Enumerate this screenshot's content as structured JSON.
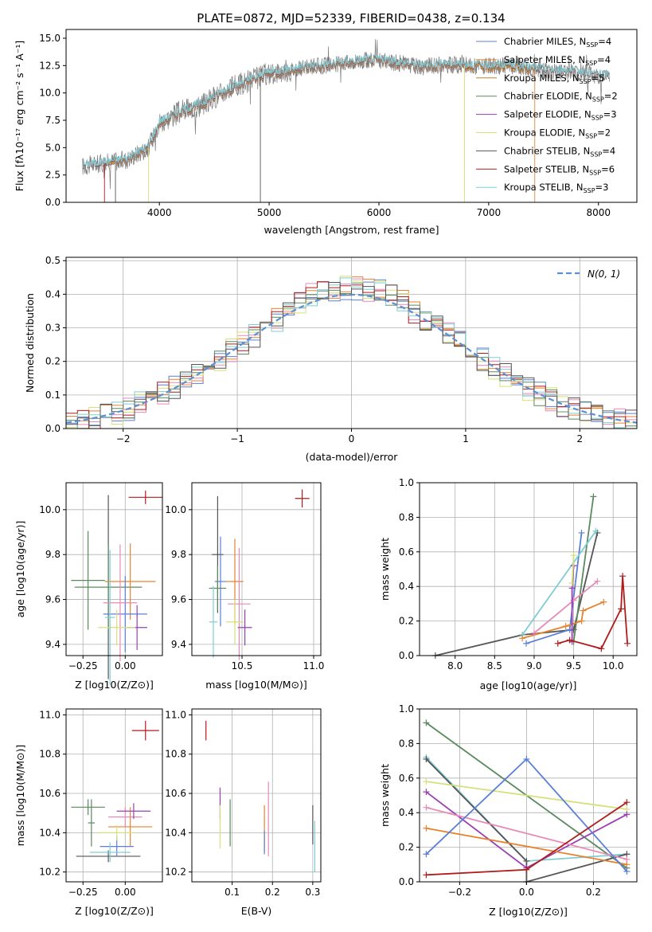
{
  "figure_title": "PLATE=0872, MJD=52339, FIBERID=0438, z=0.134",
  "colors": {
    "chabrier_miles": "#5b7fd6",
    "salpeter_miles": "#e6832e",
    "kroupa_miles": "#b8862b",
    "chabrier_elodie": "#5a8a5e",
    "salpeter_elodie": "#9a3fb3",
    "kroupa_elodie": "#d6e07a",
    "chabrier_stelib": "#555555",
    "salpeter_stelib": "#b01c1c",
    "kroupa_stelib": "#7fcdd4",
    "pink": "#e88ab7",
    "lime": "#cbe85a",
    "gaussian": "#5b8fd6"
  },
  "chart_data": [
    {
      "id": "spectrum",
      "type": "line",
      "title": "PLATE=0872, MJD=52339, FIBERID=0438, z=0.134",
      "xlabel": "wavelength [Angstrom, rest frame]",
      "ylabel": "Flux [f_λ 10^-17 erg cm^-2 s^-1 A^-1]",
      "xlim": [
        3150,
        8350
      ],
      "ylim": [
        0,
        15.8
      ],
      "xticks": [
        "4000",
        "5000",
        "6000",
        "7000",
        "8000"
      ],
      "yticks": [
        "0.0",
        "2.5",
        "5.0",
        "7.5",
        "10.0",
        "12.5",
        "15.0"
      ],
      "legend_position": "top-right",
      "legend": [
        "Chabrier MILES, N_SSP=4",
        "Salpeter MILES, N_SSP=4",
        "Kroupa MILES, N_SSP=5",
        "Chabrier ELODIE, N_SSP=2",
        "Salpeter ELODIE, N_SSP=3",
        "Kroupa ELODIE, N_SSP=2",
        "Chabrier STELIB, N_SSP=4",
        "Salpeter STELIB, N_SSP=6",
        "Kroupa STELIB, N_SSP=3"
      ],
      "continuum_x": [
        3300,
        3500,
        3700,
        3900,
        4000,
        4200,
        4400,
        4600,
        4800,
        5000,
        5200,
        5400,
        5600,
        5800,
        6000,
        6200,
        6400,
        6600,
        6800,
        7000,
        7200,
        7400,
        7600,
        7800,
        8000,
        8100
      ],
      "continuum_y": [
        3.3,
        3.6,
        3.9,
        5.0,
        7.3,
        8.3,
        9.0,
        10.2,
        11.0,
        11.8,
        12.1,
        12.4,
        12.6,
        12.9,
        13.0,
        12.7,
        12.4,
        12.6,
        12.5,
        12.4,
        12.5,
        12.2,
        12.0,
        11.9,
        11.6,
        11.5
      ]
    },
    {
      "id": "residuals",
      "type": "histogram",
      "xlabel": "(data-model)/error",
      "ylabel": "Normed distribution",
      "xlim": [
        -2.5,
        2.5
      ],
      "ylim": [
        0,
        0.51
      ],
      "xticks": [
        "−2",
        "−1",
        "0",
        "1",
        "2"
      ],
      "yticks": [
        "0.0",
        "0.1",
        "0.2",
        "0.3",
        "0.4",
        "0.5"
      ],
      "legend": [
        "N(0, 1)"
      ],
      "legend_position": "top-right"
    },
    {
      "id": "age-metallicity",
      "type": "errorbar",
      "xlabel": "Z [log10(Z/Z⊙)]",
      "ylabel": "age [log10(age/yr)]",
      "xlim": [
        -0.35,
        0.22
      ],
      "ylim": [
        9.35,
        10.12
      ],
      "xticks": [
        "−0.25",
        "0.00"
      ],
      "yticks": [
        "9.4",
        "9.6",
        "9.8",
        "10.0"
      ],
      "points": [
        {
          "x": -0.1,
          "y": 9.655,
          "xerr": 0.19,
          "yerr": 0.41,
          "series": "chabrier_stelib"
        },
        {
          "x": -0.1,
          "y": 9.655,
          "xerr": 0.2,
          "yerr": 0.19,
          "series": "chabrier_elodie"
        },
        {
          "x": -0.22,
          "y": 9.685,
          "xerr": 0.1,
          "yerr": 0.22,
          "series": "chabrier_elodie"
        },
        {
          "x": 0.03,
          "y": 9.68,
          "xerr": 0.15,
          "yerr": 0.17,
          "series": "salpeter_miles"
        },
        {
          "x": 0.0,
          "y": 9.535,
          "xerr": 0.13,
          "yerr": 0.17,
          "series": "chabrier_miles"
        },
        {
          "x": -0.03,
          "y": 9.585,
          "xerr": 0.1,
          "yerr": 0.26,
          "series": "pink"
        },
        {
          "x": 0.07,
          "y": 9.475,
          "xerr": 0.06,
          "yerr": 0.1,
          "series": "salpeter_elodie"
        },
        {
          "x": -0.05,
          "y": 9.475,
          "xerr": 0.11,
          "yerr": 0.08,
          "series": "kroupa_elodie"
        },
        {
          "x": -0.09,
          "y": 9.52,
          "xerr": 0.03,
          "yerr": 0.3,
          "series": "kroupa_stelib"
        },
        {
          "x": 0.12,
          "y": 10.055,
          "xerr": 0.1,
          "yerr": 0.03,
          "series": "salpeter_stelib"
        }
      ]
    },
    {
      "id": "age-mass",
      "type": "errorbar",
      "xlabel": "mass [log10(M/M⊙)]",
      "ylabel": "",
      "xlim": [
        10.15,
        11.05
      ],
      "ylim": [
        9.35,
        10.12
      ],
      "xticks": [
        "10.5",
        "11.0"
      ],
      "yticks": [
        "9.4",
        "9.6",
        "9.8",
        "10.0"
      ],
      "points": [
        {
          "x": 10.33,
          "y": 9.8,
          "xerr": 0.04,
          "yerr": 0.26,
          "series": "chabrier_stelib"
        },
        {
          "x": 10.35,
          "y": 9.68,
          "xerr": 0.04,
          "yerr": 0.2,
          "series": "chabrier_miles"
        },
        {
          "x": 10.45,
          "y": 9.68,
          "xerr": 0.06,
          "yerr": 0.19,
          "series": "salpeter_miles"
        },
        {
          "x": 10.48,
          "y": 9.58,
          "xerr": 0.08,
          "yerr": 0.25,
          "series": "pink"
        },
        {
          "x": 10.45,
          "y": 9.5,
          "xerr": 0.06,
          "yerr": 0.1,
          "series": "kroupa_elodie"
        },
        {
          "x": 10.52,
          "y": 9.475,
          "xerr": 0.05,
          "yerr": 0.08,
          "series": "salpeter_elodie"
        },
        {
          "x": 10.33,
          "y": 9.65,
          "xerr": 0.06,
          "yerr": 0.1,
          "series": "chabrier_elodie"
        },
        {
          "x": 10.3,
          "y": 9.5,
          "xerr": 0.03,
          "yerr": 0.16,
          "series": "kroupa_stelib"
        },
        {
          "x": 10.92,
          "y": 10.05,
          "xerr": 0.05,
          "yerr": 0.04,
          "series": "salpeter_stelib"
        }
      ]
    },
    {
      "id": "weight-age",
      "type": "line",
      "xlabel": "age [log10(age/yr)]",
      "ylabel": "mass weight",
      "xlim": [
        7.55,
        10.3
      ],
      "ylim": [
        0,
        1.0
      ],
      "xticks": [
        "8.0",
        "8.5",
        "9.0",
        "9.5",
        "10.0"
      ],
      "yticks": [
        "0.0",
        "0.2",
        "0.4",
        "0.6",
        "0.8",
        "1.0"
      ],
      "series": [
        {
          "key": "chabrier_stelib",
          "x": [
            7.75,
            8.85,
            9.5,
            9.8
          ],
          "y": [
            0.0,
            0.12,
            0.15,
            0.71
          ]
        },
        {
          "key": "chabrier_elodie",
          "x": [
            9.5,
            9.75
          ],
          "y": [
            0.08,
            0.92
          ]
        },
        {
          "key": "chabrier_miles",
          "x": [
            8.9,
            9.45,
            9.6
          ],
          "y": [
            0.07,
            0.15,
            0.71
          ]
        },
        {
          "key": "kroupa_stelib",
          "x": [
            8.85,
            9.78
          ],
          "y": [
            0.12,
            0.72
          ]
        },
        {
          "key": "salpeter_miles",
          "x": [
            8.85,
            9.4,
            9.6,
            9.62,
            9.88
          ],
          "y": [
            0.1,
            0.17,
            0.2,
            0.26,
            0.31
          ]
        },
        {
          "key": "pink",
          "x": [
            9.0,
            9.5,
            9.8
          ],
          "y": [
            0.13,
            0.32,
            0.43
          ]
        },
        {
          "key": "salpeter_elodie",
          "x": [
            9.48,
            9.48,
            9.5
          ],
          "y": [
            0.08,
            0.39,
            0.52
          ]
        },
        {
          "key": "kroupa_elodie",
          "x": [
            9.48,
            9.5
          ],
          "y": [
            0.42,
            0.58
          ]
        },
        {
          "key": "salpeter_stelib",
          "x": [
            9.3,
            9.45,
            9.85,
            10.1,
            10.12,
            10.18
          ],
          "y": [
            0.07,
            0.09,
            0.04,
            0.27,
            0.46,
            0.07
          ]
        }
      ]
    },
    {
      "id": "mass-metallicity",
      "type": "errorbar",
      "xlabel": "Z [log10(Z/Z⊙)]",
      "ylabel": "mass [log10(M/M⊙)]",
      "xlim": [
        -0.35,
        0.22
      ],
      "ylim": [
        10.15,
        11.03
      ],
      "xticks": [
        "−0.25",
        "0.00"
      ],
      "yticks": [
        "10.2",
        "10.4",
        "10.6",
        "10.8",
        "11.0"
      ],
      "points": [
        {
          "x": -0.1,
          "y": 10.28,
          "xerr": 0.19,
          "yerr": 0.03,
          "series": "chabrier_stelib"
        },
        {
          "x": -0.22,
          "y": 10.53,
          "xerr": 0.1,
          "yerr": 0.04,
          "series": "chabrier_elodie"
        },
        {
          "x": -0.2,
          "y": 10.45,
          "xerr": 0.02,
          "yerr": 0.12,
          "series": "chabrier_elodie"
        },
        {
          "x": 0.03,
          "y": 10.43,
          "xerr": 0.13,
          "yerr": 0.1,
          "series": "salpeter_miles"
        },
        {
          "x": -0.05,
          "y": 10.33,
          "xerr": 0.1,
          "yerr": 0.05,
          "series": "chabrier_miles"
        },
        {
          "x": 0.0,
          "y": 10.48,
          "xerr": 0.1,
          "yerr": 0.05,
          "series": "pink"
        },
        {
          "x": 0.05,
          "y": 10.51,
          "xerr": 0.1,
          "yerr": 0.04,
          "series": "salpeter_elodie"
        },
        {
          "x": -0.05,
          "y": 10.4,
          "xerr": 0.11,
          "yerr": 0.04,
          "series": "kroupa_elodie"
        },
        {
          "x": -0.09,
          "y": 10.3,
          "xerr": 0.12,
          "yerr": 0.05,
          "series": "kroupa_stelib"
        },
        {
          "x": 0.12,
          "y": 10.92,
          "xerr": 0.08,
          "yerr": 0.05,
          "series": "salpeter_stelib"
        }
      ]
    },
    {
      "id": "mass-extinction",
      "type": "errorbar",
      "xlabel": "E(B-V)",
      "ylabel": "",
      "xlim": [
        0.0,
        0.32
      ],
      "ylim": [
        10.15,
        11.03
      ],
      "xticks": [
        "0.1",
        "0.2",
        "0.3"
      ],
      "yticks": [
        "10.2",
        "10.4",
        "10.6",
        "10.8",
        "11.0"
      ],
      "points": [
        {
          "x": 0.035,
          "y": 10.92,
          "yerr": 0.05,
          "series": "salpeter_stelib"
        },
        {
          "x": 0.07,
          "y": 10.55,
          "yerr": 0.08,
          "series": "salpeter_elodie"
        },
        {
          "x": 0.07,
          "y": 10.43,
          "yerr": 0.11,
          "series": "kroupa_elodie"
        },
        {
          "x": 0.095,
          "y": 10.45,
          "yerr": 0.12,
          "series": "chabrier_elodie"
        },
        {
          "x": 0.18,
          "y": 10.42,
          "yerr": 0.12,
          "series": "salpeter_miles"
        },
        {
          "x": 0.18,
          "y": 10.35,
          "yerr": 0.06,
          "series": "chabrier_miles"
        },
        {
          "x": 0.19,
          "y": 10.47,
          "yerr": 0.19,
          "series": "pink"
        },
        {
          "x": 0.3,
          "y": 10.44,
          "yerr": 0.1,
          "series": "chabrier_stelib"
        },
        {
          "x": 0.305,
          "y": 10.33,
          "yerr": 0.13,
          "series": "kroupa_stelib"
        }
      ]
    },
    {
      "id": "weight-metallicity",
      "type": "line",
      "xlabel": "Z [log10(Z/Z⊙)]",
      "ylabel": "mass weight",
      "xlim": [
        -0.32,
        0.33
      ],
      "ylim": [
        0,
        1.0
      ],
      "xticks": [
        "−0.2",
        "0.0",
        "0.2"
      ],
      "yticks": [
        "0.0",
        "0.2",
        "0.4",
        "0.6",
        "0.8",
        "1.0"
      ],
      "series": [
        {
          "key": "chabrier_elodie",
          "x": [
            -0.3,
            0.3
          ],
          "y": [
            0.92,
            0.08
          ]
        },
        {
          "key": "kroupa_stelib",
          "x": [
            -0.3,
            0.0,
            0.3
          ],
          "y": [
            0.72,
            0.12,
            0.16
          ]
        },
        {
          "key": "chabrier_stelib",
          "x": [
            -0.3,
            0.0,
            0.0,
            0.3
          ],
          "y": [
            0.71,
            0.12,
            0.0,
            0.16
          ]
        },
        {
          "key": "kroupa_elodie",
          "x": [
            -0.3,
            0.3
          ],
          "y": [
            0.58,
            0.42
          ]
        },
        {
          "key": "salpeter_elodie",
          "x": [
            -0.3,
            0.0,
            0.3
          ],
          "y": [
            0.52,
            0.08,
            0.39
          ]
        },
        {
          "key": "pink",
          "x": [
            -0.3,
            0.3
          ],
          "y": [
            0.43,
            0.13
          ]
        },
        {
          "key": "salpeter_miles",
          "x": [
            -0.3,
            0.3
          ],
          "y": [
            0.31,
            0.1
          ]
        },
        {
          "key": "chabrier_miles",
          "x": [
            -0.3,
            0.0,
            0.3
          ],
          "y": [
            0.16,
            0.71,
            0.06
          ]
        },
        {
          "key": "salpeter_stelib",
          "x": [
            -0.3,
            0.0,
            0.3
          ],
          "y": [
            0.04,
            0.07,
            0.46
          ]
        }
      ]
    }
  ]
}
